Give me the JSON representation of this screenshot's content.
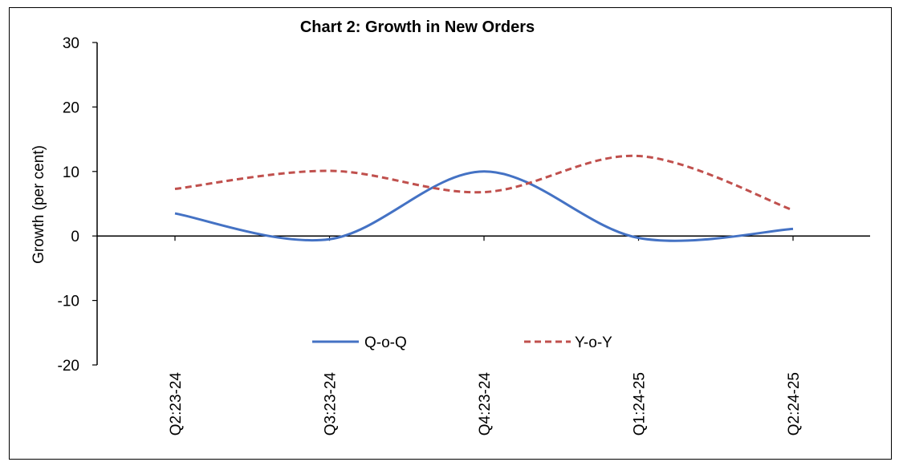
{
  "chart_data": {
    "type": "line",
    "title": "Chart 2: Growth in New Orders",
    "xlabel": "",
    "ylabel": "Growth (per cent)",
    "ylim": [
      -20,
      30
    ],
    "yticks": [
      -20,
      -10,
      0,
      10,
      20,
      30
    ],
    "categories": [
      "Q2:23-24",
      "Q3:23-24",
      "Q4:23-24",
      "Q1:24-25",
      "Q2:24-25"
    ],
    "series": [
      {
        "name": "Q-o-Q",
        "values": [
          3.5,
          -0.5,
          10.0,
          -0.3,
          1.1
        ],
        "color": "#4472C4",
        "dash": "solid"
      },
      {
        "name": "Y-o-Y",
        "values": [
          7.3,
          10.1,
          6.8,
          12.4,
          4.0
        ],
        "color": "#C0504D",
        "dash": "dashed"
      }
    ],
    "grid": false,
    "legend": "bottom-center"
  }
}
